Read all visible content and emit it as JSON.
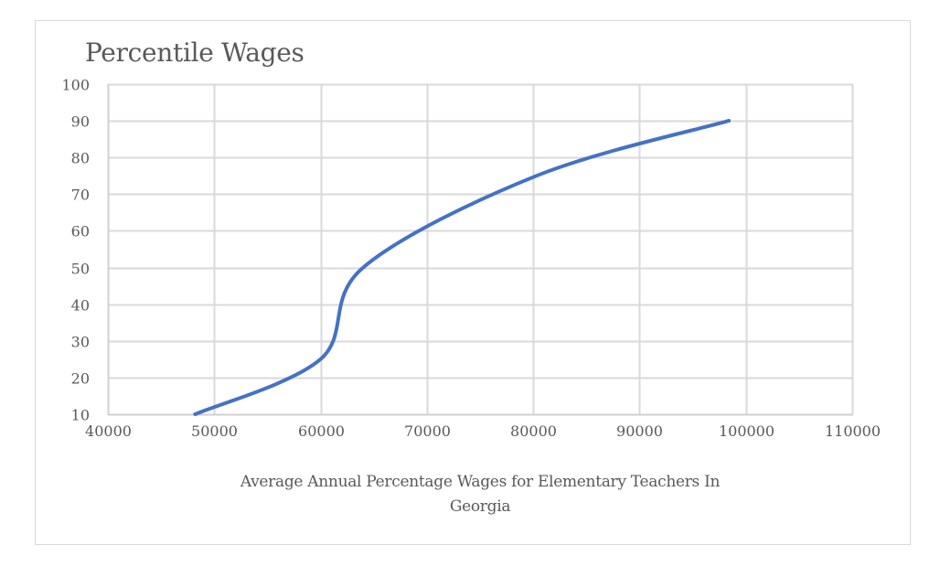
{
  "chart_data": {
    "type": "line",
    "title": "Percentile Wages",
    "xlabel": "Average Annual Percentage Wages for Elementary Teachers In Georgia",
    "xlabel_lines": [
      "Average Annual Percentage Wages for Elementary Teachers In",
      "Georgia"
    ],
    "ylabel": "",
    "smooth": true,
    "grid": true,
    "legend": "none",
    "xlim": [
      40000,
      110000
    ],
    "ylim": [
      10,
      100
    ],
    "x_ticks": [
      40000,
      50000,
      60000,
      70000,
      80000,
      90000,
      100000,
      110000
    ],
    "y_ticks": [
      10,
      20,
      30,
      40,
      50,
      60,
      70,
      80,
      90,
      100
    ],
    "series": [
      {
        "name": "Percentile Wages",
        "color": "#4472c4",
        "points": [
          {
            "x": 48200,
            "y": 10
          },
          {
            "x": 60000,
            "y": 25
          },
          {
            "x": 64000,
            "y": 50
          },
          {
            "x": 80300,
            "y": 75
          },
          {
            "x": 98400,
            "y": 90
          }
        ]
      }
    ]
  },
  "colors": {
    "line": "#4472c4",
    "grid": "#d9d9d9",
    "axis": "#d0d0d0",
    "text": "#595959",
    "border": "#d9d9d9"
  }
}
